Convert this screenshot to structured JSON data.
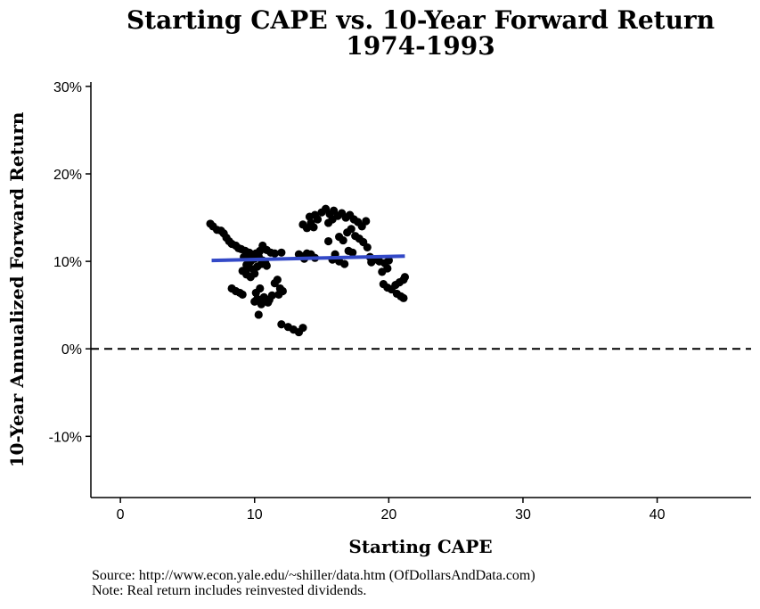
{
  "chart_data": {
    "type": "scatter",
    "title": "Starting CAPE vs. 10-Year Forward Return",
    "subtitle": "1974-1993",
    "xlabel": "Starting CAPE",
    "ylabel": "10-Year Annualized Forward Return",
    "xlim": [
      -2.2,
      47
    ],
    "ylim": [
      -17,
      30.5
    ],
    "xticks": [
      0,
      10,
      20,
      30,
      40
    ],
    "xtick_labels": [
      "0",
      "10",
      "20",
      "30",
      "40"
    ],
    "yticks": [
      -10,
      0,
      10,
      20,
      30
    ],
    "ytick_labels": [
      "-10%",
      "0%",
      "10%",
      "20%",
      "30%"
    ],
    "reference_line": {
      "y": 0,
      "style": "dashed"
    },
    "trend_line": {
      "x": [
        6.8,
        21.2
      ],
      "y": [
        10.1,
        10.6
      ],
      "color": "#3349C7"
    },
    "grid": false,
    "legend": "none",
    "point_color": "#000000",
    "points": [
      [
        6.7,
        14.3
      ],
      [
        6.9,
        14.0
      ],
      [
        7.2,
        13.6
      ],
      [
        7.5,
        13.5
      ],
      [
        7.7,
        13.2
      ],
      [
        7.9,
        12.7
      ],
      [
        8.1,
        12.3
      ],
      [
        8.3,
        12.0
      ],
      [
        8.6,
        11.8
      ],
      [
        8.8,
        11.5
      ],
      [
        9.0,
        11.4
      ],
      [
        9.3,
        11.2
      ],
      [
        9.6,
        11.0
      ],
      [
        9.8,
        10.8
      ],
      [
        10.1,
        10.9
      ],
      [
        10.4,
        11.2
      ],
      [
        10.6,
        11.8
      ],
      [
        10.9,
        11.3
      ],
      [
        11.2,
        11.0
      ],
      [
        11.5,
        10.9
      ],
      [
        12.0,
        11.0
      ],
      [
        9.2,
        10.5
      ],
      [
        9.5,
        10.3
      ],
      [
        9.7,
        10.0
      ],
      [
        10.0,
        10.3
      ],
      [
        10.3,
        10.6
      ],
      [
        10.6,
        10.1
      ],
      [
        10.8,
        9.8
      ],
      [
        9.4,
        9.6
      ],
      [
        9.6,
        9.3
      ],
      [
        9.9,
        9.1
      ],
      [
        10.2,
        9.4
      ],
      [
        10.5,
        9.7
      ],
      [
        10.9,
        9.5
      ],
      [
        9.1,
        8.9
      ],
      [
        9.4,
        8.5
      ],
      [
        9.7,
        8.2
      ],
      [
        10.0,
        8.6
      ],
      [
        8.3,
        6.9
      ],
      [
        8.6,
        6.6
      ],
      [
        8.9,
        6.4
      ],
      [
        9.1,
        6.2
      ],
      [
        10.1,
        6.4
      ],
      [
        10.4,
        6.9
      ],
      [
        10.7,
        5.9
      ],
      [
        11.0,
        5.3
      ],
      [
        10.2,
        5.7
      ],
      [
        10.5,
        5.1
      ],
      [
        10.0,
        5.4
      ],
      [
        10.3,
        3.9
      ],
      [
        11.1,
        5.6
      ],
      [
        11.3,
        6.1
      ],
      [
        11.5,
        7.5
      ],
      [
        11.7,
        7.9
      ],
      [
        11.9,
        6.9
      ],
      [
        12.1,
        6.6
      ],
      [
        11.8,
        6.2
      ],
      [
        12.0,
        2.8
      ],
      [
        12.5,
        2.5
      ],
      [
        12.9,
        2.2
      ],
      [
        13.3,
        1.9
      ],
      [
        13.6,
        2.4
      ],
      [
        13.5,
        10.6
      ],
      [
        13.7,
        10.3
      ],
      [
        13.9,
        10.9
      ],
      [
        14.2,
        10.8
      ],
      [
        14.5,
        10.4
      ],
      [
        13.3,
        10.8
      ],
      [
        13.6,
        14.2
      ],
      [
        13.9,
        13.8
      ],
      [
        14.2,
        14.4
      ],
      [
        14.4,
        13.9
      ],
      [
        14.1,
        15.1
      ],
      [
        14.5,
        15.3
      ],
      [
        14.7,
        14.8
      ],
      [
        15.0,
        15.6
      ],
      [
        15.3,
        16.0
      ],
      [
        15.6,
        15.4
      ],
      [
        15.9,
        15.8
      ],
      [
        16.2,
        15.2
      ],
      [
        16.5,
        15.5
      ],
      [
        16.8,
        15.0
      ],
      [
        17.1,
        15.3
      ],
      [
        17.4,
        14.8
      ],
      [
        17.7,
        14.5
      ],
      [
        18.0,
        14.0
      ],
      [
        18.3,
        14.6
      ],
      [
        15.5,
        14.4
      ],
      [
        15.8,
        14.8
      ],
      [
        15.5,
        12.3
      ],
      [
        16.3,
        12.8
      ],
      [
        16.6,
        12.4
      ],
      [
        16.9,
        13.3
      ],
      [
        17.2,
        13.7
      ],
      [
        17.5,
        12.9
      ],
      [
        17.8,
        12.6
      ],
      [
        18.1,
        12.2
      ],
      [
        18.4,
        11.6
      ],
      [
        17.0,
        11.2
      ],
      [
        17.3,
        11.0
      ],
      [
        18.6,
        10.5
      ],
      [
        18.9,
        10.2
      ],
      [
        19.3,
        10.0
      ],
      [
        19.7,
        9.8
      ],
      [
        20.0,
        10.1
      ],
      [
        18.7,
        9.9
      ],
      [
        16.0,
        10.8
      ],
      [
        16.3,
        10.0
      ],
      [
        16.7,
        9.7
      ],
      [
        15.8,
        10.2
      ],
      [
        19.5,
        8.8
      ],
      [
        19.9,
        9.2
      ],
      [
        19.6,
        7.4
      ],
      [
        19.9,
        7.0
      ],
      [
        20.2,
        6.8
      ],
      [
        20.5,
        7.3
      ],
      [
        20.8,
        7.6
      ],
      [
        21.1,
        7.9
      ],
      [
        21.2,
        8.2
      ],
      [
        20.6,
        6.3
      ],
      [
        20.9,
        6.0
      ],
      [
        21.1,
        5.8
      ]
    ],
    "source": "Source:  http://www.econ.yale.edu/~shiller/data.htm (OfDollarsAndData.com)",
    "note": "Note:  Real return includes reinvested dividends."
  }
}
